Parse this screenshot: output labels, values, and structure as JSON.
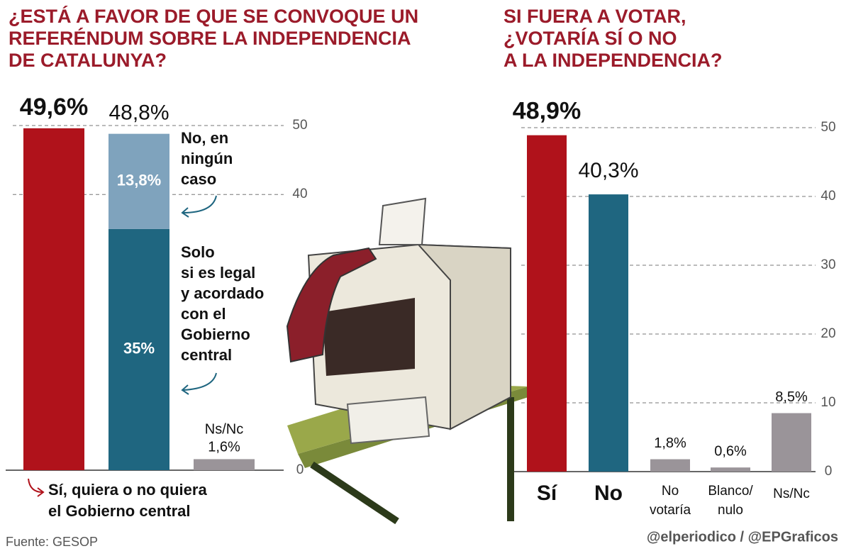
{
  "chart_data": [
    {
      "type": "bar",
      "stacked": true,
      "title": [
        "¿ESTÁ A FAVOR DE QUE SE CONVOQUE UN",
        "REFERÉNDUM SOBRE LA INDEPENDENCIA",
        "DE CATALUNYA?"
      ],
      "categories": [
        null,
        null,
        null
      ],
      "series": [
        {
          "name": [
            "Sí, quiera o no quiera",
            "el Gobierno central"
          ],
          "color": "#b0121b",
          "values": [
            49.6,
            null,
            null
          ],
          "value_labels": [
            "49,6%",
            null,
            null
          ]
        },
        {
          "name": [
            "Solo",
            "si es legal",
            "y acordado",
            "con el",
            "Gobierno",
            "central"
          ],
          "color": "#1f6680",
          "values": [
            null,
            35,
            null
          ],
          "value_labels": [
            null,
            "35%",
            null
          ]
        },
        {
          "name": [
            "No, en",
            "ningún",
            "caso"
          ],
          "color": "#7fa3bd",
          "values": [
            null,
            13.8,
            null
          ],
          "value_labels": [
            null,
            "13,8%",
            null
          ]
        },
        {
          "name": [
            "Ns/Nc"
          ],
          "color": "#9a9499",
          "values": [
            null,
            null,
            1.6
          ],
          "value_labels": [
            null,
            null,
            "1,6%"
          ]
        }
      ],
      "totals": [
        null,
        48.8,
        null
      ],
      "total_labels": [
        null,
        "48,8%",
        null
      ],
      "ylim": [
        0,
        50
      ],
      "yticks": [
        0,
        40,
        50
      ],
      "grid": true
    },
    {
      "type": "bar",
      "title": [
        "SI FUERA A VOTAR,",
        "¿VOTARÍA SÍ O NO",
        "A LA INDEPENDENCIA?"
      ],
      "categories": [
        [
          "Sí"
        ],
        [
          "No"
        ],
        [
          "No",
          "votaría"
        ],
        [
          "Blanco/",
          "nulo"
        ],
        [
          "Ns/Nc"
        ]
      ],
      "values": [
        48.9,
        40.3,
        1.8,
        0.6,
        8.5
      ],
      "value_labels": [
        "48,9%",
        "40,3%",
        "1,8%",
        "0,6%",
        "8,5%"
      ],
      "colors": [
        "#b0121b",
        "#1f6680",
        "#9a9499",
        "#9a9499",
        "#9a9499"
      ],
      "ylim": [
        0,
        50
      ],
      "yticks": [
        0,
        10,
        20,
        30,
        40,
        50
      ],
      "grid": true
    }
  ],
  "source": "Fuente: GESOP",
  "credit": "@elperiodico / @EPGraficos"
}
